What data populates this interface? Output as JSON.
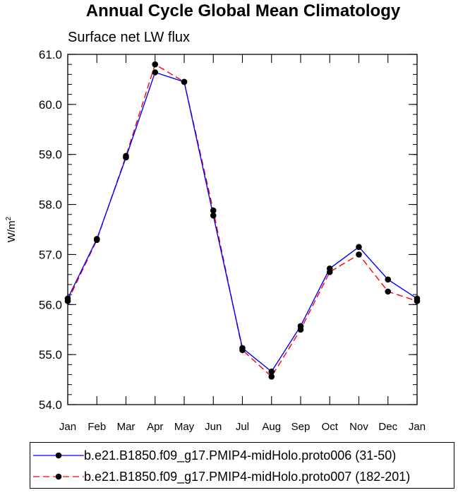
{
  "chart_data": {
    "type": "line",
    "title": "Annual Cycle Global Mean Climatology",
    "subtitle": "Surface net LW flux",
    "xlabel": "",
    "ylabel": "W/m",
    "ylabel_superscript": "2",
    "categories": [
      "Jan",
      "Feb",
      "Mar",
      "Apr",
      "May",
      "Jun",
      "Jul",
      "Aug",
      "Sep",
      "Oct",
      "Nov",
      "Dec",
      "Jan"
    ],
    "ylim": [
      54.0,
      61.0
    ],
    "yticks": [
      "54.0",
      "55.0",
      "56.0",
      "57.0",
      "58.0",
      "59.0",
      "60.0",
      "61.0"
    ],
    "grid": false,
    "legend_position": "bottom",
    "series": [
      {
        "name": "b.e21.B1850.f09_g17.PMIP4-midHolo.proto006 (31-50)",
        "color": "#0000ff",
        "dash": "solid",
        "values": [
          56.12,
          57.31,
          58.94,
          60.64,
          60.45,
          57.78,
          55.13,
          54.66,
          55.57,
          56.72,
          57.15,
          56.5,
          56.12
        ]
      },
      {
        "name": "b.e21.B1850.f09_g17.PMIP4-midHolo.proto007 (182-201)",
        "color": "#ff0000",
        "dash": "dashed",
        "values": [
          56.07,
          57.29,
          58.97,
          60.8,
          60.45,
          57.88,
          55.09,
          54.56,
          55.5,
          56.65,
          57.0,
          56.26,
          56.07
        ]
      }
    ]
  }
}
